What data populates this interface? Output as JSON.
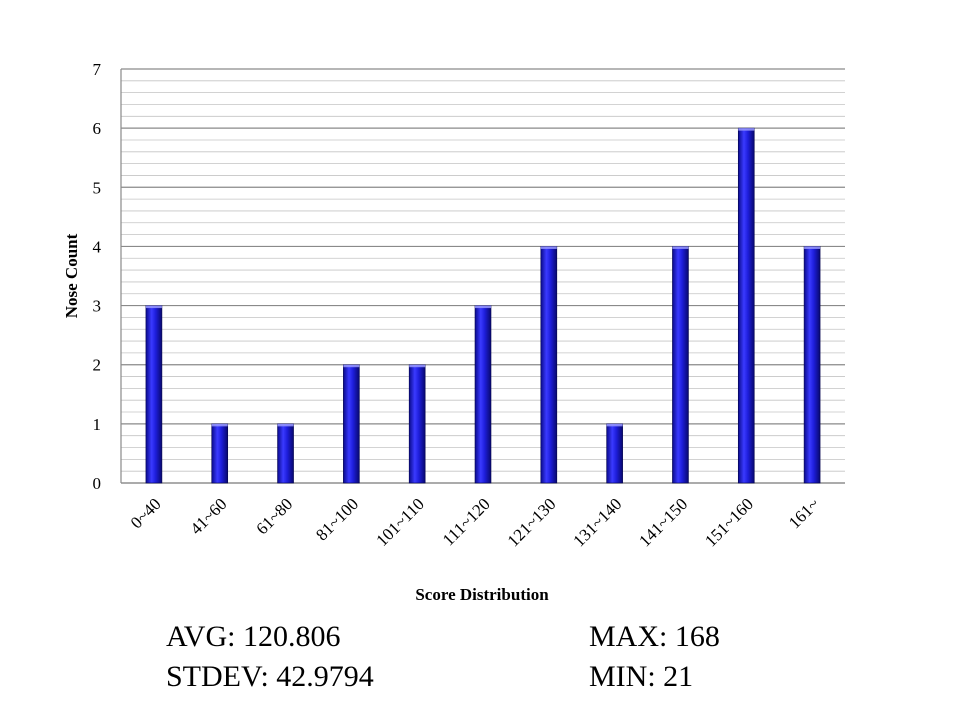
{
  "chart_data": {
    "type": "bar",
    "title": "",
    "xlabel": "Score Distribution",
    "ylabel": "Nose Count",
    "categories": [
      "0~40",
      "41~60",
      "61~80",
      "81~100",
      "101~110",
      "111~120",
      "121~130",
      "131~140",
      "141~150",
      "151~160",
      "161~"
    ],
    "values": [
      3,
      1,
      1,
      2,
      2,
      3,
      4,
      1,
      4,
      6,
      4
    ],
    "ylim": [
      0,
      7
    ],
    "yticks": [
      0,
      1,
      2,
      3,
      4,
      5,
      6,
      7
    ],
    "grid": true,
    "bar_color": "#1a1adb"
  },
  "stats": {
    "avg": "AVG: 120.806",
    "stdev": "STDEV: 42.9794",
    "max": "MAX: 168",
    "min": "MIN: 21"
  }
}
